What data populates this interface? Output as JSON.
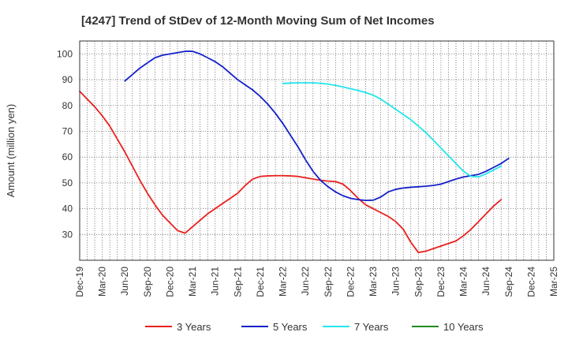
{
  "chart_data": {
    "type": "line",
    "title": "[4247]  Trend of StDev of 12-Month Moving Sum of Net Incomes",
    "ylabel": "Amount (million yen)",
    "xlabel": "",
    "ylim": [
      20,
      105
    ],
    "yticks": [
      30,
      40,
      50,
      60,
      70,
      80,
      90,
      100
    ],
    "x_tick_labels": [
      "Dec-19",
      "Mar-20",
      "Jun-20",
      "Sep-20",
      "Dec-20",
      "Mar-21",
      "Jun-21",
      "Sep-21",
      "Dec-21",
      "Mar-22",
      "Jun-22",
      "Sep-22",
      "Dec-22",
      "Mar-23",
      "Jun-23",
      "Sep-23",
      "Dec-23",
      "Mar-24",
      "Jun-24",
      "Sep-24",
      "Dec-24",
      "Mar-25"
    ],
    "grid": true,
    "legend_position": "bottom",
    "series": [
      {
        "name": "3 Years",
        "color": "#e8211f",
        "start_month_index": 0,
        "values": [
          85.5,
          82.5,
          79.5,
          76,
          72,
          67,
          62,
          56.5,
          51,
          46,
          41.5,
          37.5,
          34.5,
          31.5,
          30.5,
          33,
          35.5,
          38,
          40,
          42,
          44,
          46,
          49,
          51.5,
          52.5,
          52.7,
          52.8,
          52.8,
          52.7,
          52.5,
          52,
          51.5,
          51,
          50.7,
          50.5,
          49.5,
          47,
          44,
          41.5,
          40,
          38.5,
          37,
          35,
          32,
          27,
          23,
          23.5,
          24.5,
          25.5,
          26.5,
          27.5,
          29.5,
          32,
          35,
          38,
          41,
          43.5
        ]
      },
      {
        "name": "5 Years",
        "color": "#1521c9",
        "start_month_index": 6,
        "values": [
          89.5,
          92,
          94.5,
          96.5,
          98.5,
          99.5,
          100,
          100.5,
          101,
          101,
          100,
          98.5,
          97,
          95,
          92.5,
          90,
          88,
          86,
          83.5,
          80.5,
          77,
          73,
          68.5,
          64,
          59,
          54.5,
          51,
          48.5,
          46.5,
          45,
          44,
          43.5,
          43.2,
          43.3,
          44.5,
          46.5,
          47.5,
          48,
          48.3,
          48.5,
          48.7,
          49,
          49.5,
          50.5,
          51.5,
          52.3,
          52.8,
          53.3,
          54.5,
          56,
          57.5,
          59.5
        ]
      },
      {
        "name": "7 Years",
        "color": "#22e5ea",
        "start_month_index": 27,
        "values": [
          88.5,
          88.7,
          88.8,
          88.8,
          88.8,
          88.6,
          88.3,
          87.8,
          87.2,
          86.5,
          85.8,
          85,
          84,
          82.5,
          80.5,
          78.5,
          76.5,
          74.5,
          72,
          69.5,
          66.5,
          63.5,
          60.5,
          57.5,
          54.5,
          52.5,
          52.3,
          53.5,
          55,
          56.5
        ]
      },
      {
        "name": "10 Years",
        "color": "#1f8a1f",
        "start_month_index": 0,
        "values": []
      }
    ]
  }
}
